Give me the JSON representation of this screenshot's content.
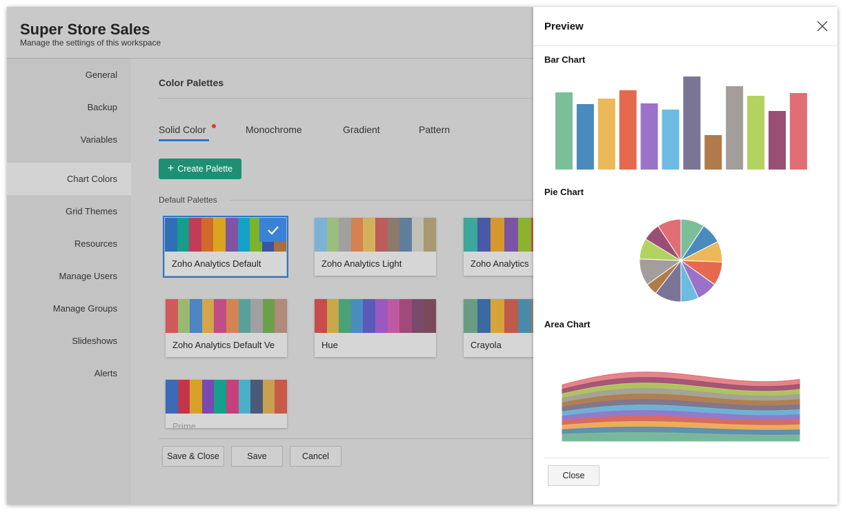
{
  "header": {
    "title": "Super Store Sales",
    "subtitle": "Manage the settings of this workspace"
  },
  "sidebar": {
    "items": [
      {
        "label": "General"
      },
      {
        "label": "Backup"
      },
      {
        "label": "Variables"
      },
      {
        "label": "Chart Colors"
      },
      {
        "label": "Grid Themes"
      },
      {
        "label": "Resources"
      },
      {
        "label": "Manage Users"
      },
      {
        "label": "Manage Groups"
      },
      {
        "label": "Slideshows"
      },
      {
        "label": "Alerts"
      }
    ],
    "active": "Chart Colors"
  },
  "main": {
    "section_title": "Color Palettes",
    "tabs": [
      {
        "label": "Solid Color"
      },
      {
        "label": "Monochrome"
      },
      {
        "label": "Gradient"
      },
      {
        "label": "Pattern"
      }
    ],
    "create_button": "Create Palette",
    "default_label": "Default Palettes",
    "palettes": [
      {
        "name": "Zoho Analytics Default",
        "selected": true,
        "colors": [
          "#2f6fb5",
          "#159e8a",
          "#c23c5a",
          "#d06a2c",
          "#d9a520",
          "#7f54a3",
          "#14a0c8",
          "#7cb32b",
          "#3a54a4",
          "#a6703c"
        ]
      },
      {
        "name": "Zoho Analytics Light",
        "colors": [
          "#7ab3d6",
          "#9bbd7e",
          "#a0a0a0",
          "#d6814e",
          "#d4b05a",
          "#bc5c5c",
          "#8d7a6c",
          "#5f7d9c",
          "#c0c0b8",
          "#a89a70"
        ]
      },
      {
        "name": "Zoho Analytics",
        "colors": [
          "#3aa89b",
          "#4a58a8",
          "#d6982c",
          "#7c54a6",
          "#8cb32e",
          "#c35b4a"
        ]
      },
      {
        "name": "Zoho Analytics Default Ve",
        "colors": [
          "#d05a5a",
          "#9ab870",
          "#4c84c4",
          "#d4a54a",
          "#c24d86",
          "#d48352",
          "#5aa09a",
          "#a0a0a0",
          "#6aa04a",
          "#b08a7a"
        ]
      },
      {
        "name": "Hue",
        "colors": [
          "#c94b4b",
          "#c8a84a",
          "#4aa078",
          "#4a8cc0",
          "#5a5ab8",
          "#9a58c0",
          "#c05aa0",
          "#a04a7a",
          "#7a4a6a",
          "#7a4a5a"
        ]
      },
      {
        "name": "Crayola",
        "colors": [
          "#6a9c84",
          "#3a6aa0",
          "#d6a43a",
          "#c05a4a",
          "#4a8aa8",
          "#9a8a6a"
        ]
      },
      {
        "name": "Prime",
        "colors": [
          "#3a6ab8",
          "#c2364a",
          "#d9a02a",
          "#7a4ab0",
          "#14a08a",
          "#c8407a",
          "#4ab0c8",
          "#4a5a7a",
          "#c8a050",
          "#c85a4a"
        ]
      }
    ],
    "buttons": {
      "save_close": "Save & Close",
      "save": "Save",
      "cancel": "Cancel"
    }
  },
  "preview": {
    "title": "Preview",
    "bar_label": "Bar Chart",
    "pie_label": "Pie Chart",
    "area_label": "Area Chart",
    "close_button": "Close"
  },
  "chart_data": [
    {
      "type": "bar",
      "title": "",
      "values": [
        112,
        95,
        103,
        115,
        96,
        87,
        135,
        50,
        121,
        107,
        85,
        111
      ],
      "colors": [
        "#7bbf9a",
        "#4a8bbd",
        "#ebb95a",
        "#e5694f",
        "#9a72c8",
        "#6bbbe2",
        "#7a7595",
        "#b07a4a",
        "#a39e9b",
        "#b2d35f",
        "#9b4e73",
        "#e06e74"
      ]
    },
    {
      "type": "pie",
      "title": "",
      "values": [
        8,
        7,
        7,
        8,
        7,
        6,
        9,
        4,
        9,
        7,
        6,
        8
      ],
      "colors": [
        "#7bbf9a",
        "#4a8bbd",
        "#ebb95a",
        "#e5694f",
        "#9a72c8",
        "#6bbbe2",
        "#7a7595",
        "#b07a4a",
        "#a39e9b",
        "#b2d35f",
        "#9b4e73",
        "#e06e74"
      ]
    },
    {
      "type": "area",
      "title": "",
      "stacked": true,
      "series_count": 12,
      "colors": [
        "#7bbf9a",
        "#4a8bbd",
        "#ebb95a",
        "#e5694f",
        "#9a72c8",
        "#6bbbe2",
        "#7a7595",
        "#b07a4a",
        "#a39e9b",
        "#b2d35f",
        "#9b4e73",
        "#e06e74"
      ]
    }
  ]
}
